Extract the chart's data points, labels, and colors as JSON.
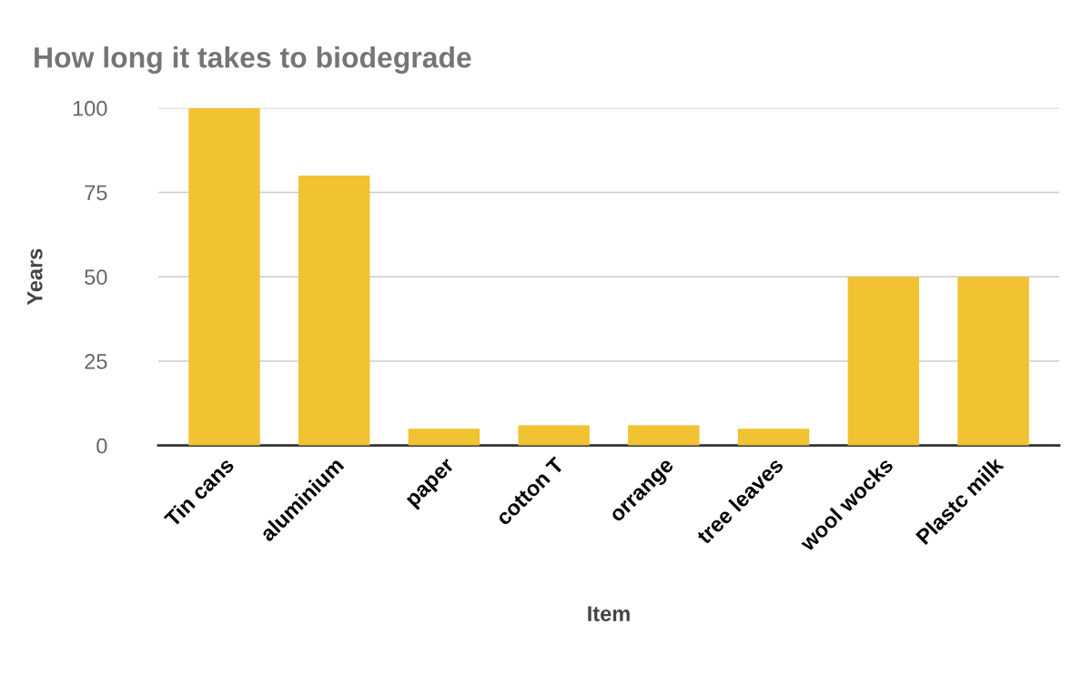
{
  "chart_data": {
    "type": "bar",
    "title": "How long it takes to biodegrade",
    "xlabel": "Item",
    "ylabel": "Years",
    "categories": [
      "Tin cans",
      "aluminium",
      "paper",
      "cotton T",
      "orrange",
      "tree leaves",
      "wool wocks",
      "Plastc milk"
    ],
    "values": [
      100,
      80,
      5,
      6,
      6,
      5,
      50,
      50
    ],
    "color": "#f1c232",
    "ylim": [
      0,
      100
    ],
    "yticks": [
      0,
      25,
      50,
      75,
      100
    ],
    "grid": "y",
    "legend": false
  }
}
